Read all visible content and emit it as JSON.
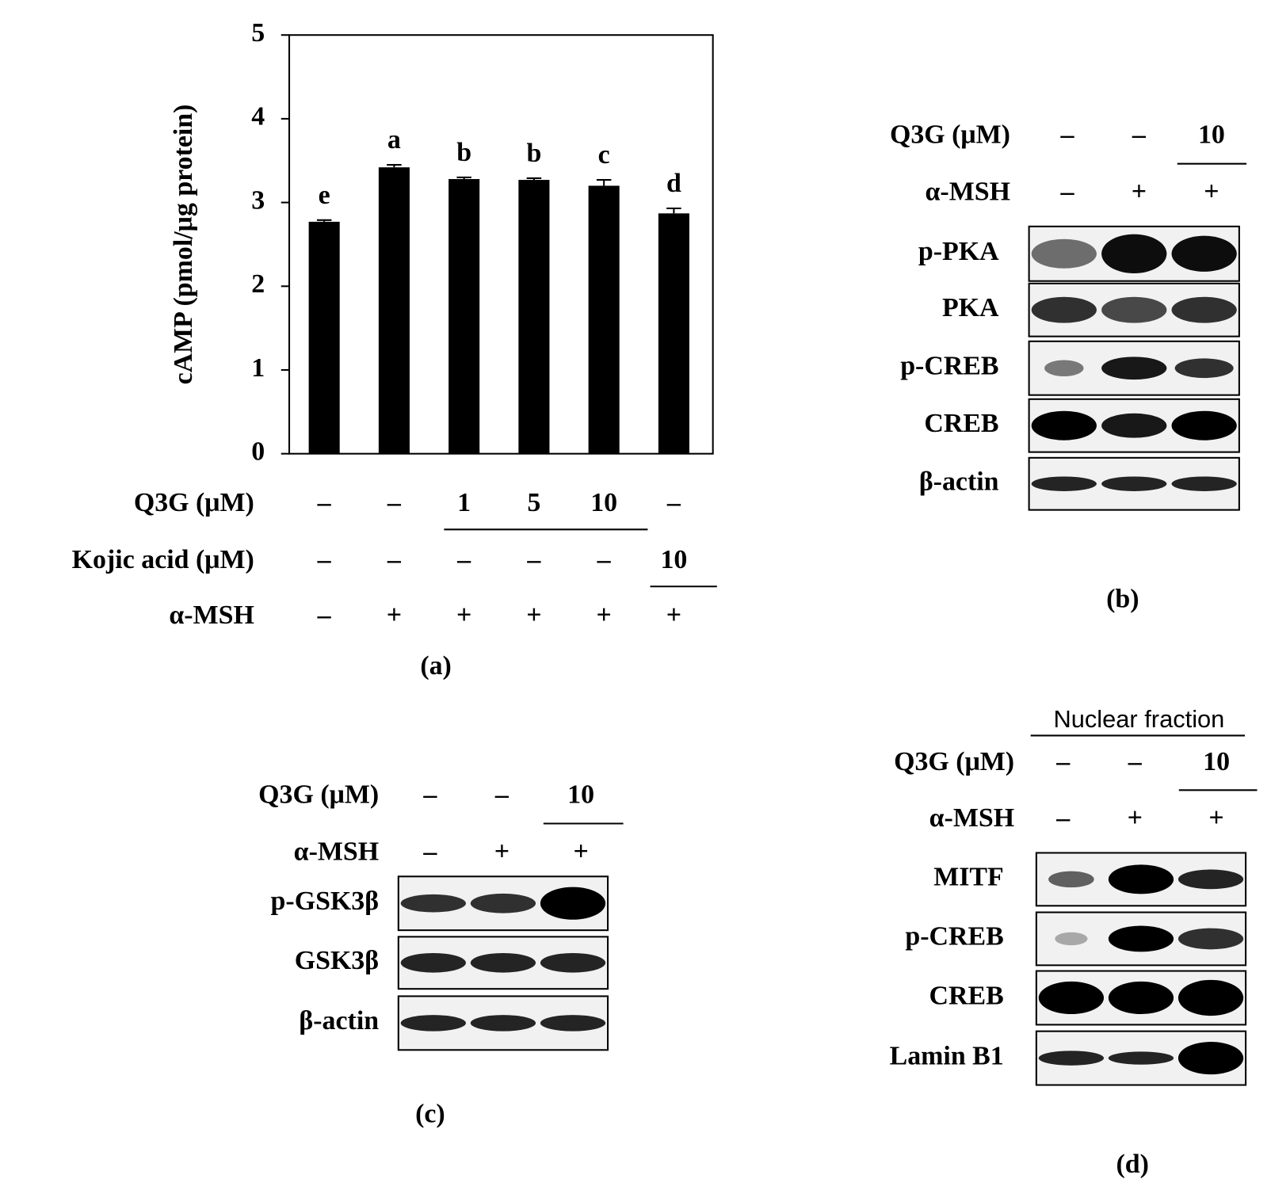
{
  "chart_data": {
    "type": "bar",
    "ylabel": "cAMP (pmol/μg protein)",
    "values": [
      2.77,
      3.42,
      3.28,
      3.27,
      3.2,
      2.87
    ],
    "errors": [
      0.02,
      0.03,
      0.02,
      0.02,
      0.07,
      0.06
    ],
    "annotations": [
      "e",
      "a",
      "b",
      "b",
      "c",
      "d"
    ],
    "color": "#000000",
    "ylim": [
      0,
      5
    ],
    "yticks": [
      0,
      1,
      2,
      3,
      4,
      5
    ],
    "treatments": [
      {
        "label": "Q3G (μM)",
        "values": [
          "–",
          "–",
          "1",
          "5",
          "10",
          "–"
        ]
      },
      {
        "label": "Kojic acid (μM)",
        "values": [
          "–",
          "–",
          "–",
          "–",
          "–",
          "10"
        ]
      },
      {
        "label": "α-MSH",
        "values": [
          "–",
          "+",
          "+",
          "+",
          "+",
          "+"
        ]
      }
    ],
    "caption": "(a)"
  },
  "panels": [
    {
      "caption": "(b)",
      "treatments": [
        {
          "label": "Q3G (μM)",
          "values": [
            "–",
            "–",
            "10"
          ]
        },
        {
          "label": "α-MSH",
          "values": [
            "–",
            "+",
            "+"
          ]
        }
      ],
      "blots": [
        "p-PKA",
        "PKA",
        "p-CREB",
        "CREB",
        "β-actin"
      ]
    },
    {
      "caption": "(c)",
      "treatments": [
        {
          "label": "Q3G (μM)",
          "values": [
            "–",
            "–",
            "10"
          ]
        },
        {
          "label": "α-MSH",
          "values": [
            "–",
            "+",
            "+"
          ]
        }
      ],
      "blots": [
        "p-GSK3β",
        "GSK3β",
        "β-actin"
      ]
    },
    {
      "caption": "(d)",
      "header": "Nuclear fraction",
      "treatments": [
        {
          "label": "Q3G (μM)",
          "values": [
            "–",
            "–",
            "10"
          ]
        },
        {
          "label": "α-MSH",
          "values": [
            "–",
            "+",
            "+"
          ]
        }
      ],
      "blots": [
        "MITF",
        "p-CREB",
        "CREB",
        "Lamin B1"
      ]
    }
  ]
}
